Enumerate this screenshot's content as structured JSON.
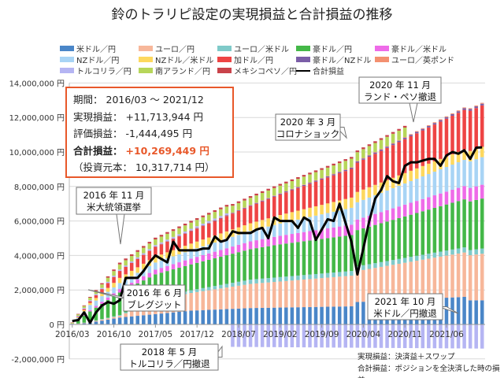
{
  "chart_data": {
    "type": "bar",
    "title": "鈴のトラリピ設定の実現損益と合計損益の推移",
    "xlabel": "",
    "ylabel": "",
    "ylim": [
      -2000000,
      14000000
    ],
    "yticks": [
      "14,000,000 円",
      "12,000,000 円",
      "10,000,000 円",
      "8,000,000 円",
      "6,000,000 円",
      "4,000,000 円",
      "2,000,000 円",
      "0 円",
      "-2,000,000 円"
    ],
    "ytick_values": [
      14,
      12,
      10,
      8,
      6,
      4,
      2,
      0,
      -2
    ],
    "x_start": "2016/03",
    "n_months": 70,
    "xticks": [
      {
        "label": "2016/03",
        "i": 0
      },
      {
        "label": "2016/10",
        "i": 7
      },
      {
        "label": "2017/05",
        "i": 14
      },
      {
        "label": "2017/12",
        "i": 21
      },
      {
        "label": "2018/07",
        "i": 28
      },
      {
        "label": "2019/02",
        "i": 35
      },
      {
        "label": "2019/09",
        "i": 42
      },
      {
        "label": "2020/04",
        "i": 49
      },
      {
        "label": "2020/11",
        "i": 56
      },
      {
        "label": "2021/06",
        "i": 63
      }
    ],
    "series": [
      {
        "name": "米ドル／円",
        "color": "#4a86c8",
        "kf": [
          [
            0,
            0
          ],
          [
            3,
            0.1
          ],
          [
            8,
            0.4
          ],
          [
            20,
            0.8
          ],
          [
            30,
            0.95
          ],
          [
            47,
            1.05
          ],
          [
            48,
            1.3
          ],
          [
            66,
            1.6
          ],
          [
            67,
            1.4
          ],
          [
            69,
            1.4
          ]
        ]
      },
      {
        "name": "ユーロ／円",
        "color": "#f7b79a",
        "kf": [
          [
            0,
            0
          ],
          [
            8,
            0.1
          ],
          [
            14,
            0.8
          ],
          [
            30,
            1.4
          ],
          [
            48,
            1.8
          ],
          [
            69,
            2.7
          ]
        ]
      },
      {
        "name": "ユーロ／米ドル",
        "color": "#7fcac9",
        "kf": [
          [
            0,
            0
          ],
          [
            8,
            0.05
          ],
          [
            30,
            0.25
          ],
          [
            69,
            0.3
          ]
        ]
      },
      {
        "name": "豪ドル／円",
        "color": "#44b848",
        "kf": [
          [
            0,
            0
          ],
          [
            3,
            0.6
          ],
          [
            8,
            1.3
          ],
          [
            20,
            1.5
          ],
          [
            35,
            1.9
          ],
          [
            48,
            2.1
          ],
          [
            69,
            2.9
          ]
        ]
      },
      {
        "name": "豪ドル／米ドル",
        "color": "#ee6be8",
        "kf": [
          [
            0,
            0
          ],
          [
            8,
            0.2
          ],
          [
            30,
            0.45
          ],
          [
            69,
            0.8
          ]
        ]
      },
      {
        "name": "NZドル／円",
        "color": "#a8d4f5",
        "kf": [
          [
            0,
            0
          ],
          [
            3,
            0.3
          ],
          [
            8,
            0.35
          ],
          [
            30,
            0.6
          ],
          [
            48,
            1.0
          ],
          [
            69,
            1.6
          ]
        ]
      },
      {
        "name": "NZドル／米ドル",
        "color": "#fdd85e",
        "kf": [
          [
            0,
            0
          ],
          [
            8,
            0.3
          ],
          [
            30,
            0.45
          ],
          [
            48,
            0.6
          ],
          [
            69,
            0.6
          ]
        ]
      },
      {
        "name": "加ドル／円",
        "color": "#ee4444",
        "kf": [
          [
            0,
            0
          ],
          [
            3,
            0.1
          ],
          [
            8,
            0.4
          ],
          [
            30,
            1.0
          ],
          [
            48,
            1.7
          ],
          [
            69,
            2.4
          ]
        ]
      },
      {
        "name": "豪ドル／NZドル",
        "color": "#7b5ea7",
        "kf": [
          [
            0,
            0
          ],
          [
            69,
            0.1
          ]
        ]
      },
      {
        "name": "ユーロ／英ポンド",
        "color": "#f39070",
        "kf": [
          [
            0,
            0
          ],
          [
            69,
            0.05
          ]
        ]
      },
      {
        "name": "トルコリラ／円",
        "color": "#b5b5f3",
        "kf": [
          [
            0,
            0.05
          ],
          [
            26,
            0.1
          ],
          [
            27,
            -1.3
          ],
          [
            69,
            -1.4
          ]
        ]
      },
      {
        "name": "南アランド／円",
        "color": "#b7d65a",
        "kf": [
          [
            0,
            0.05
          ],
          [
            8,
            0.3
          ],
          [
            48,
            0.5
          ],
          [
            56,
            0.55
          ],
          [
            57,
            0
          ],
          [
            69,
            0
          ]
        ]
      },
      {
        "name": "メキシコペソ／円",
        "color": "#c9434a",
        "kf": [
          [
            0,
            0.02
          ],
          [
            8,
            0.1
          ],
          [
            56,
            0.1
          ],
          [
            57,
            0
          ],
          [
            69,
            0
          ]
        ]
      }
    ],
    "line": {
      "name": "合計損益",
      "color": "#000000",
      "values": [
        0.2,
        0.25,
        0.7,
        0.1,
        0.7,
        1.1,
        1.3,
        1.2,
        1.4,
        2.7,
        2.7,
        2.7,
        3.1,
        3.6,
        4.0,
        3.8,
        3.6,
        4.8,
        4.3,
        4.3,
        4.3,
        4.3,
        4.4,
        4.4,
        5.1,
        4.8,
        4.9,
        5.4,
        5.3,
        5.3,
        5.3,
        5.5,
        5.6,
        5.0,
        6.2,
        6.0,
        6.0,
        6.0,
        5.6,
        6.2,
        6.0,
        4.9,
        5.5,
        6.1,
        6.0,
        7.0,
        5.9,
        4.8,
        2.9,
        4.4,
        6.0,
        7.3,
        7.8,
        8.6,
        8.3,
        8.2,
        9.2,
        9.4,
        9.4,
        9.5,
        9.6,
        9.6,
        9.2,
        9.8,
        10.0,
        9.9,
        10.1,
        9.6,
        10.25,
        10.27
      ]
    },
    "annotations": [
      {
        "l1": "2020 年 11 月",
        "l2": "ランド・ペソ撤退"
      },
      {
        "l1": "2020 年 3 月",
        "l2": "コロナショック"
      },
      {
        "l1": "2016 年 11 月",
        "l2": "米大統領選挙"
      },
      {
        "l1": "2016 年 6 月",
        "l2": "ブレグジット"
      },
      {
        "l1": "2021 年 10 月",
        "l2": "米ドル／円撤退"
      },
      {
        "l1": "2018 年 5 月",
        "l2": "トルコリラ／円撤退"
      }
    ]
  },
  "info": {
    "period_label": "期間：",
    "period": "2016/03 ～ 2021/12",
    "realized_label": "実現損益：",
    "realized": "+11,713,944 円",
    "unrealized_label": "評価損益：",
    "unrealized": "-1,444,495 円",
    "total_label": "合計損益：",
    "total": "+10,269,449 円",
    "principal": "（投資元本： 10,317,714 円）"
  },
  "notes": [
    "実現損益：決済益＋スワップ",
    "合計損益：ポジションを全決済した時の損益"
  ]
}
